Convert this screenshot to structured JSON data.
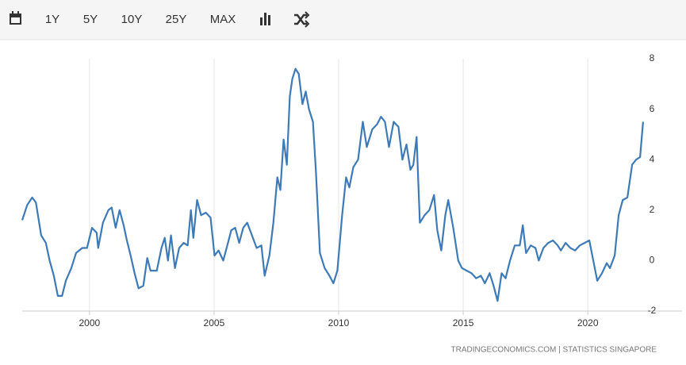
{
  "toolbar": {
    "buttons": [
      "1Y",
      "5Y",
      "10Y",
      "25Y",
      "MAX"
    ]
  },
  "chart_data": {
    "type": "line",
    "series": [
      {
        "color": "#3d7ab8",
        "x": [
          1997.3,
          1997.5,
          1997.7,
          1997.85,
          1998.06,
          1998.25,
          1998.4,
          1998.57,
          1998.73,
          1998.9,
          1999.05,
          1999.27,
          1999.46,
          1999.71,
          1999.9,
          2000.1,
          2000.29,
          2000.35,
          2000.54,
          2000.76,
          2000.89,
          2001.05,
          2001.21,
          2001.37,
          2001.5,
          2001.65,
          2001.81,
          2001.97,
          2002.16,
          2002.32,
          2002.45,
          2002.7,
          2002.89,
          2003.02,
          2003.15,
          2003.27,
          2003.43,
          2003.6,
          2003.78,
          2003.94,
          2004.07,
          2004.17,
          2004.32,
          2004.48,
          2004.67,
          2004.86,
          2005.02,
          2005.18,
          2005.37,
          2005.53,
          2005.69,
          2005.85,
          2006.01,
          2006.17,
          2006.33,
          2006.52,
          2006.71,
          2006.9,
          2007.03,
          2007.22,
          2007.38,
          2007.54,
          2007.66,
          2007.79,
          2007.92,
          2008.04,
          2008.14,
          2008.27,
          2008.4,
          2008.55,
          2008.68,
          2008.81,
          2008.97,
          2009.09,
          2009.25,
          2009.44,
          2009.63,
          2009.79,
          2009.95,
          2010.14,
          2010.3,
          2010.43,
          2010.59,
          2010.78,
          2010.97,
          2011.13,
          2011.35,
          2011.54,
          2011.7,
          2011.86,
          2012.02,
          2012.21,
          2012.4,
          2012.56,
          2012.72,
          2012.88,
          2013.0,
          2013.13,
          2013.26,
          2013.45,
          2013.64,
          2013.83,
          2013.96,
          2014.12,
          2014.28,
          2014.4,
          2014.6,
          2014.8,
          2014.95,
          2015.14,
          2015.33,
          2015.52,
          2015.71,
          2015.87,
          2016.06,
          2016.22,
          2016.38,
          2016.54,
          2016.7,
          2016.88,
          2017.07,
          2017.27,
          2017.39,
          2017.52,
          2017.71,
          2017.9,
          2018.03,
          2018.22,
          2018.41,
          2018.6,
          2018.79,
          2018.92,
          2019.11,
          2019.3,
          2019.49,
          2019.68,
          2019.87,
          2020.06,
          2020.22,
          2020.38,
          2020.57,
          2020.76,
          2020.89,
          2021.08,
          2021.24,
          2021.4,
          2021.59,
          2021.78,
          2021.94,
          2022.1,
          2022.22
        ],
        "values": [
          1.6,
          2.2,
          2.5,
          2.3,
          1.0,
          0.7,
          0.0,
          -0.6,
          -1.4,
          -1.4,
          -0.8,
          -0.3,
          0.3,
          0.5,
          0.5,
          1.3,
          1.1,
          0.5,
          1.5,
          2.0,
          2.1,
          1.3,
          2.0,
          1.4,
          0.8,
          0.2,
          -0.5,
          -1.1,
          -1.0,
          0.1,
          -0.4,
          -0.4,
          0.5,
          0.9,
          0.0,
          1.0,
          -0.3,
          0.5,
          0.7,
          0.6,
          2.0,
          0.9,
          2.4,
          1.8,
          1.9,
          1.7,
          0.2,
          0.4,
          0.0,
          0.6,
          1.2,
          1.3,
          0.7,
          1.3,
          1.5,
          1.0,
          0.5,
          0.6,
          -0.6,
          0.2,
          1.5,
          3.3,
          2.8,
          4.8,
          3.8,
          6.5,
          7.2,
          7.6,
          7.4,
          6.2,
          6.7,
          6.0,
          5.5,
          3.5,
          0.3,
          -0.3,
          -0.6,
          -0.9,
          -0.4,
          1.8,
          3.3,
          2.9,
          3.7,
          4.0,
          5.5,
          4.5,
          5.2,
          5.4,
          5.7,
          5.5,
          4.5,
          5.5,
          5.3,
          4.0,
          4.6,
          3.6,
          3.8,
          4.9,
          1.5,
          1.8,
          2.0,
          2.6,
          1.2,
          0.4,
          1.8,
          2.4,
          1.3,
          0.0,
          -0.3,
          -0.4,
          -0.5,
          -0.7,
          -0.6,
          -0.9,
          -0.5,
          -1.0,
          -1.6,
          -0.5,
          -0.7,
          0.0,
          0.6,
          0.6,
          1.4,
          0.3,
          0.6,
          0.5,
          0.0,
          0.5,
          0.7,
          0.8,
          0.6,
          0.4,
          0.7,
          0.5,
          0.4,
          0.6,
          0.7,
          0.8,
          0.0,
          -0.8,
          -0.5,
          -0.1,
          -0.3,
          0.2,
          1.8,
          2.4,
          2.5,
          3.8,
          4.0,
          4.1,
          5.5
        ]
      }
    ],
    "xlim": [
      1997.3,
      2022.35
    ],
    "xticks": [
      2000,
      2005,
      2010,
      2015,
      2020
    ],
    "ylim": [
      -2,
      8
    ],
    "yticks": [
      -2,
      0,
      2,
      4,
      6,
      8
    ],
    "xgrid": true
  },
  "footer": "TRADINGECONOMICS.COM  |  STATISTICS SINGAPORE"
}
